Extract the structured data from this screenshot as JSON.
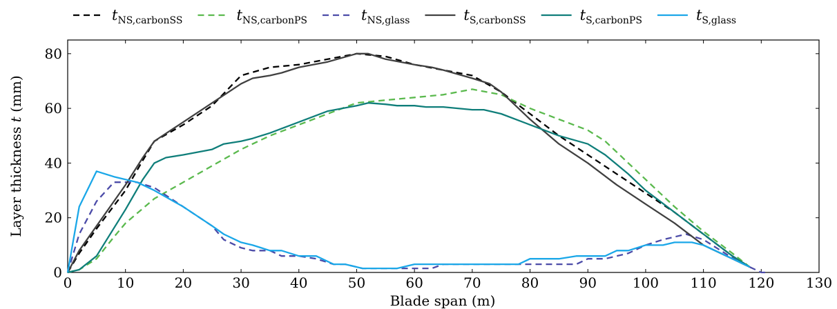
{
  "chart_data": {
    "type": "line",
    "xlabel": "Blade span (m)",
    "ylabel_prefix": "Layer thickness ",
    "ylabel_var": "t",
    "ylabel_suffix": " (mm)",
    "xlim": [
      0,
      130
    ],
    "ylim": [
      0,
      85
    ],
    "xticks": [
      0,
      10,
      20,
      30,
      40,
      50,
      60,
      70,
      80,
      90,
      100,
      110,
      120,
      130
    ],
    "yticks": [
      0,
      20,
      40,
      60,
      80
    ],
    "grid": false,
    "legend_position": "top",
    "series": [
      {
        "name": "t_NS,carbonSS",
        "var": "t",
        "sub": "NS,carbonSS",
        "color": "#000000",
        "dash": "9,6",
        "points": [
          [
            0,
            0
          ],
          [
            2,
            7
          ],
          [
            5,
            16
          ],
          [
            10,
            30
          ],
          [
            13,
            41
          ],
          [
            15,
            48
          ],
          [
            20,
            54
          ],
          [
            25,
            61
          ],
          [
            30,
            72
          ],
          [
            35,
            75
          ],
          [
            40,
            76
          ],
          [
            45,
            78
          ],
          [
            50,
            80
          ],
          [
            55,
            79
          ],
          [
            60,
            76
          ],
          [
            65,
            74
          ],
          [
            70,
            72
          ],
          [
            75,
            66
          ],
          [
            80,
            58
          ],
          [
            85,
            50
          ],
          [
            90,
            43
          ],
          [
            95,
            36
          ],
          [
            100,
            29
          ],
          [
            105,
            22
          ],
          [
            110,
            14
          ],
          [
            115,
            6
          ],
          [
            118,
            2
          ]
        ]
      },
      {
        "name": "t_NS,carbonPS",
        "var": "t",
        "sub": "NS,carbonPS",
        "color": "#5ab94d",
        "dash": "9,6",
        "points": [
          [
            0,
            0
          ],
          [
            2,
            1
          ],
          [
            5,
            5
          ],
          [
            8,
            13
          ],
          [
            10,
            18
          ],
          [
            15,
            27
          ],
          [
            20,
            33
          ],
          [
            25,
            39
          ],
          [
            30,
            45
          ],
          [
            35,
            50
          ],
          [
            40,
            54
          ],
          [
            45,
            58
          ],
          [
            50,
            62
          ],
          [
            55,
            63
          ],
          [
            60,
            64
          ],
          [
            65,
            65
          ],
          [
            70,
            67
          ],
          [
            75,
            65
          ],
          [
            80,
            60
          ],
          [
            85,
            56
          ],
          [
            90,
            52
          ],
          [
            93,
            48
          ],
          [
            97,
            40
          ],
          [
            100,
            34
          ],
          [
            105,
            24
          ],
          [
            110,
            15
          ],
          [
            115,
            7
          ],
          [
            118,
            2
          ]
        ]
      },
      {
        "name": "t_NS,glass",
        "var": "t",
        "sub": "NS,glass",
        "color": "#4b4ba8",
        "dash": "9,6",
        "points": [
          [
            0,
            0
          ],
          [
            2,
            14
          ],
          [
            5,
            26
          ],
          [
            8,
            33
          ],
          [
            12,
            33
          ],
          [
            15,
            31
          ],
          [
            20,
            24
          ],
          [
            25,
            17
          ],
          [
            27,
            12
          ],
          [
            30,
            9
          ],
          [
            32,
            8
          ],
          [
            35,
            8
          ],
          [
            37,
            6
          ],
          [
            40,
            6
          ],
          [
            43,
            5
          ],
          [
            46,
            3
          ],
          [
            48,
            3
          ],
          [
            51,
            1.5
          ],
          [
            55,
            1.5
          ],
          [
            57,
            1.5
          ],
          [
            60,
            1.5
          ],
          [
            63,
            1.5
          ],
          [
            65,
            3
          ],
          [
            70,
            3
          ],
          [
            75,
            3
          ],
          [
            78,
            3
          ],
          [
            80,
            3
          ],
          [
            85,
            3
          ],
          [
            88,
            3
          ],
          [
            90,
            5
          ],
          [
            93,
            5
          ],
          [
            95,
            6
          ],
          [
            97,
            7
          ],
          [
            100,
            10
          ],
          [
            103,
            12
          ],
          [
            107,
            14
          ],
          [
            110,
            12
          ],
          [
            113,
            8
          ],
          [
            116,
            4
          ],
          [
            118,
            2
          ],
          [
            120,
            0
          ],
          [
            121,
            0
          ]
        ]
      },
      {
        "name": "t_S,carbonSS",
        "var": "t",
        "sub": "S,carbonSS",
        "color": "#404040",
        "dash": "",
        "points": [
          [
            0,
            0
          ],
          [
            2,
            8
          ],
          [
            5,
            17
          ],
          [
            10,
            32
          ],
          [
            13,
            42
          ],
          [
            15,
            48
          ],
          [
            20,
            55
          ],
          [
            25,
            62
          ],
          [
            30,
            69
          ],
          [
            32,
            71
          ],
          [
            35,
            72
          ],
          [
            37,
            73
          ],
          [
            40,
            75
          ],
          [
            45,
            77
          ],
          [
            50,
            80
          ],
          [
            52,
            80
          ],
          [
            55,
            78
          ],
          [
            60,
            76
          ],
          [
            63,
            75
          ],
          [
            65,
            74
          ],
          [
            70,
            71
          ],
          [
            73,
            69
          ],
          [
            75,
            66
          ],
          [
            80,
            56
          ],
          [
            85,
            47
          ],
          [
            90,
            40
          ],
          [
            95,
            32
          ],
          [
            100,
            25
          ],
          [
            105,
            18
          ],
          [
            110,
            10
          ],
          [
            115,
            5
          ],
          [
            118,
            2
          ]
        ]
      },
      {
        "name": "t_S,carbonPS",
        "var": "t",
        "sub": "S,carbonPS",
        "color": "#0f7e7a",
        "dash": "",
        "points": [
          [
            0,
            0
          ],
          [
            2,
            1
          ],
          [
            5,
            6
          ],
          [
            10,
            23
          ],
          [
            13,
            34
          ],
          [
            15,
            40
          ],
          [
            17,
            42
          ],
          [
            20,
            43
          ],
          [
            25,
            45
          ],
          [
            27,
            47
          ],
          [
            30,
            48
          ],
          [
            32,
            49
          ],
          [
            35,
            51
          ],
          [
            40,
            55
          ],
          [
            45,
            59
          ],
          [
            50,
            61
          ],
          [
            52,
            62
          ],
          [
            55,
            61.5
          ],
          [
            57,
            61
          ],
          [
            60,
            61
          ],
          [
            62,
            60.5
          ],
          [
            65,
            60.5
          ],
          [
            70,
            59.5
          ],
          [
            72,
            59.5
          ],
          [
            75,
            58
          ],
          [
            80,
            54
          ],
          [
            85,
            50
          ],
          [
            90,
            47
          ],
          [
            93,
            43
          ],
          [
            97,
            36
          ],
          [
            100,
            30
          ],
          [
            105,
            22
          ],
          [
            110,
            14
          ],
          [
            115,
            6
          ],
          [
            118,
            2
          ]
        ]
      },
      {
        "name": "t_S,glass",
        "var": "t",
        "sub": "S,glass",
        "color": "#1aa7e8",
        "dash": "",
        "points": [
          [
            0,
            0
          ],
          [
            2,
            24
          ],
          [
            5,
            37
          ],
          [
            8,
            35
          ],
          [
            10,
            34
          ],
          [
            12,
            33
          ],
          [
            15,
            30
          ],
          [
            20,
            24
          ],
          [
            25,
            17
          ],
          [
            27,
            14
          ],
          [
            30,
            11
          ],
          [
            32,
            10
          ],
          [
            35,
            8
          ],
          [
            37,
            8
          ],
          [
            40,
            6
          ],
          [
            43,
            6
          ],
          [
            46,
            3
          ],
          [
            48,
            3
          ],
          [
            51,
            1.5
          ],
          [
            55,
            1.5
          ],
          [
            57,
            1.5
          ],
          [
            60,
            3
          ],
          [
            63,
            3
          ],
          [
            65,
            3
          ],
          [
            70,
            3
          ],
          [
            75,
            3
          ],
          [
            78,
            3
          ],
          [
            80,
            5
          ],
          [
            85,
            5
          ],
          [
            88,
            6
          ],
          [
            90,
            6
          ],
          [
            93,
            6
          ],
          [
            95,
            8
          ],
          [
            97,
            8
          ],
          [
            100,
            10
          ],
          [
            103,
            10
          ],
          [
            105,
            11
          ],
          [
            108,
            11
          ],
          [
            110,
            10
          ],
          [
            113,
            7
          ],
          [
            116,
            4
          ],
          [
            118,
            2
          ]
        ]
      }
    ]
  }
}
